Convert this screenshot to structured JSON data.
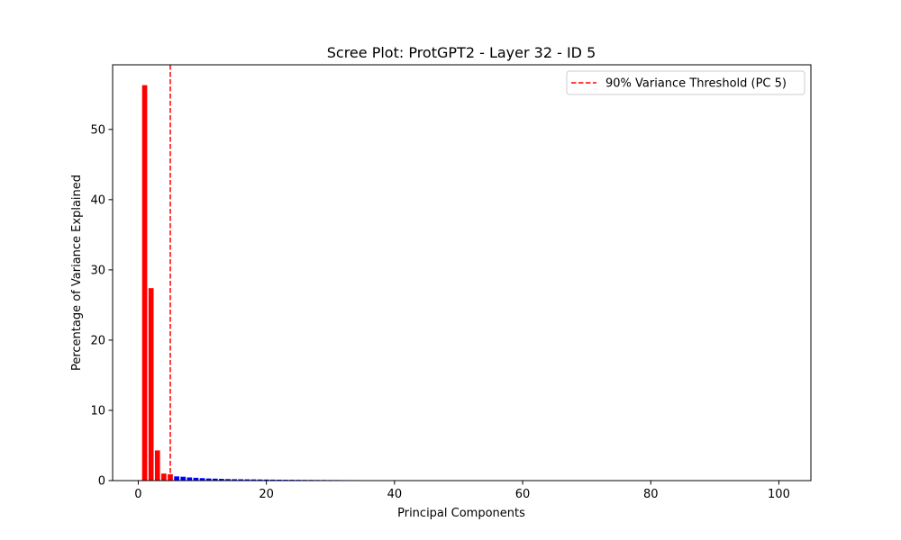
{
  "chart_data": {
    "type": "bar",
    "title": "Scree Plot: ProtGPT2 - Layer 32 - ID 5",
    "xlabel": "Principal Components",
    "ylabel": "Percentage of Variance Explained",
    "xlim": [
      -4,
      105
    ],
    "ylim": [
      0,
      59.2
    ],
    "x_ticks": [
      0,
      20,
      40,
      60,
      80,
      100
    ],
    "y_ticks": [
      0,
      10,
      20,
      30,
      40,
      50
    ],
    "grid": false,
    "legend_position": "top-right",
    "threshold": {
      "pc": 5,
      "label": "90% Variance Threshold (PC 5)",
      "color": "#ff0000",
      "style": "dashed"
    },
    "colors": {
      "above_threshold": "#ff0000",
      "below_threshold": "#0000ff"
    },
    "bar_width": 0.8,
    "series": [
      {
        "x": [
          1,
          2,
          3,
          4,
          5,
          6,
          7,
          8,
          9,
          10,
          11,
          12,
          13,
          14,
          15,
          16,
          17,
          18,
          19,
          20,
          21,
          22,
          23,
          24,
          25,
          26,
          27,
          28,
          29,
          30,
          31,
          32,
          33,
          34,
          35,
          36,
          37,
          38,
          39,
          40,
          41,
          42,
          43,
          44,
          45,
          46,
          47,
          48,
          49,
          50,
          51,
          52,
          53,
          54,
          55,
          56,
          57,
          58,
          59,
          60,
          61,
          62,
          63,
          64,
          65,
          66,
          67,
          68,
          69,
          70,
          71,
          72,
          73,
          74,
          75,
          76,
          77,
          78,
          79,
          80,
          81,
          82,
          83,
          84,
          85,
          86,
          87,
          88,
          89,
          90,
          91,
          92,
          93,
          94,
          95,
          96,
          97,
          98,
          99,
          100
        ],
        "values": [
          56.3,
          27.4,
          4.3,
          1.0,
          0.9,
          0.6,
          0.55,
          0.45,
          0.4,
          0.35,
          0.3,
          0.28,
          0.25,
          0.22,
          0.2,
          0.19,
          0.18,
          0.17,
          0.16,
          0.15,
          0.14,
          0.13,
          0.12,
          0.12,
          0.11,
          0.1,
          0.1,
          0.09,
          0.09,
          0.08,
          0.08,
          0.07,
          0.07,
          0.07,
          0.06,
          0.06,
          0.06,
          0.05,
          0.03,
          0.02,
          0.02,
          0.02,
          0.02,
          0.01,
          0.01,
          0.01,
          0.01,
          0.01,
          0.01,
          0.01,
          0.01,
          0.01,
          0.01,
          0.01,
          0.01,
          0.01,
          0.01,
          0.01,
          0.01,
          0.01,
          0.01,
          0.01,
          0.01,
          0.01,
          0.01,
          0.01,
          0.01,
          0.01,
          0.01,
          0.01,
          0.01,
          0.01,
          0.01,
          0.01,
          0.01,
          0.01,
          0.01,
          0.01,
          0.01,
          0.01,
          0.01,
          0.01,
          0.01,
          0.01,
          0.01,
          0.01,
          0.01,
          0.01,
          0.01,
          0.01,
          0.01,
          0.01,
          0.01,
          0.01,
          0.01,
          0.01,
          0.01,
          0.01,
          0.01,
          0.01
        ]
      }
    ]
  }
}
